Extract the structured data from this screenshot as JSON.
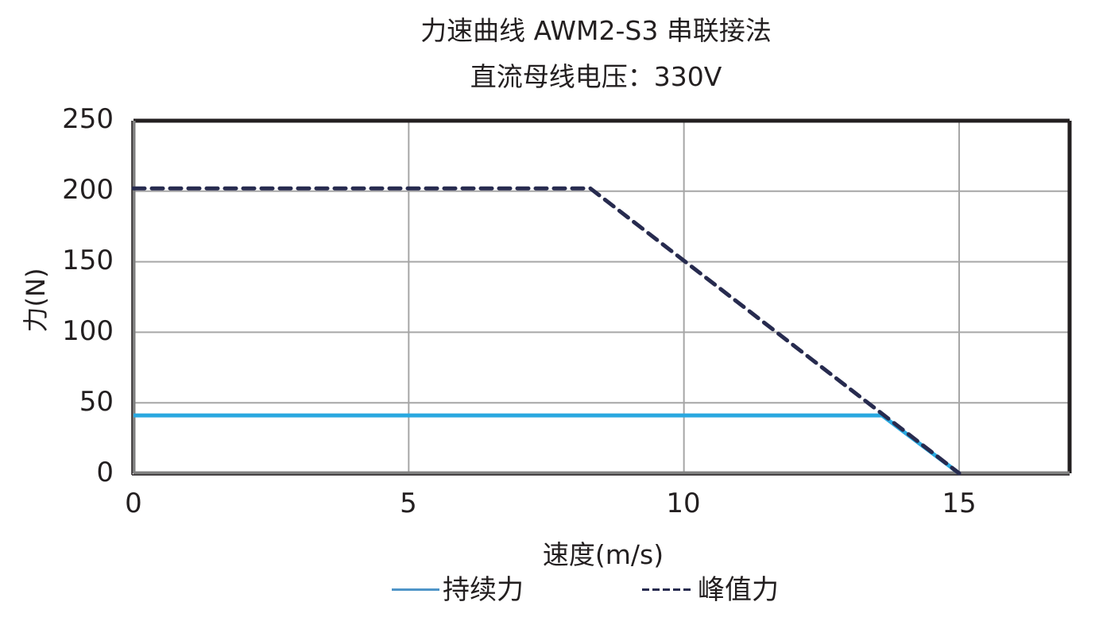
{
  "title": {
    "line1": "力速曲线 AWM2-S3 串联接法",
    "line2": "直流母线电压：330V"
  },
  "axes": {
    "xlabel": "速度(m/s)",
    "ylabel": "力(N)",
    "xticks": [
      "0",
      "5",
      "10",
      "15"
    ],
    "yticks": [
      "250",
      "200",
      "150",
      "100",
      "50",
      "0"
    ]
  },
  "legend": {
    "continuous": "持续力",
    "peak": "峰值力",
    "continuous_symbol": "——",
    "peak_symbol": "-----"
  },
  "colors": {
    "continuous": "#29a8e0",
    "peak": "#272b4f",
    "grid": "#a6a6a6",
    "frame": "#231f20"
  },
  "chart_data": {
    "type": "line",
    "title": "力速曲线 AWM2-S3 串联接法 / 直流母线电压：330V",
    "xlabel": "速度(m/s)",
    "ylabel": "力(N)",
    "xlim": [
      0,
      17
    ],
    "ylim": [
      0,
      250
    ],
    "xticks": [
      0,
      5,
      10,
      15
    ],
    "yticks": [
      0,
      50,
      100,
      150,
      200,
      250
    ],
    "grid": true,
    "legend_position": "bottom",
    "series": [
      {
        "name": "持续力",
        "style": "solid",
        "color": "#29a8e0",
        "x": [
          0,
          13.6,
          15
        ],
        "y": [
          41,
          41,
          0
        ]
      },
      {
        "name": "峰值力",
        "style": "dashed",
        "color": "#272b4f",
        "x": [
          0,
          8.3,
          15
        ],
        "y": [
          202,
          202,
          0
        ]
      }
    ]
  }
}
